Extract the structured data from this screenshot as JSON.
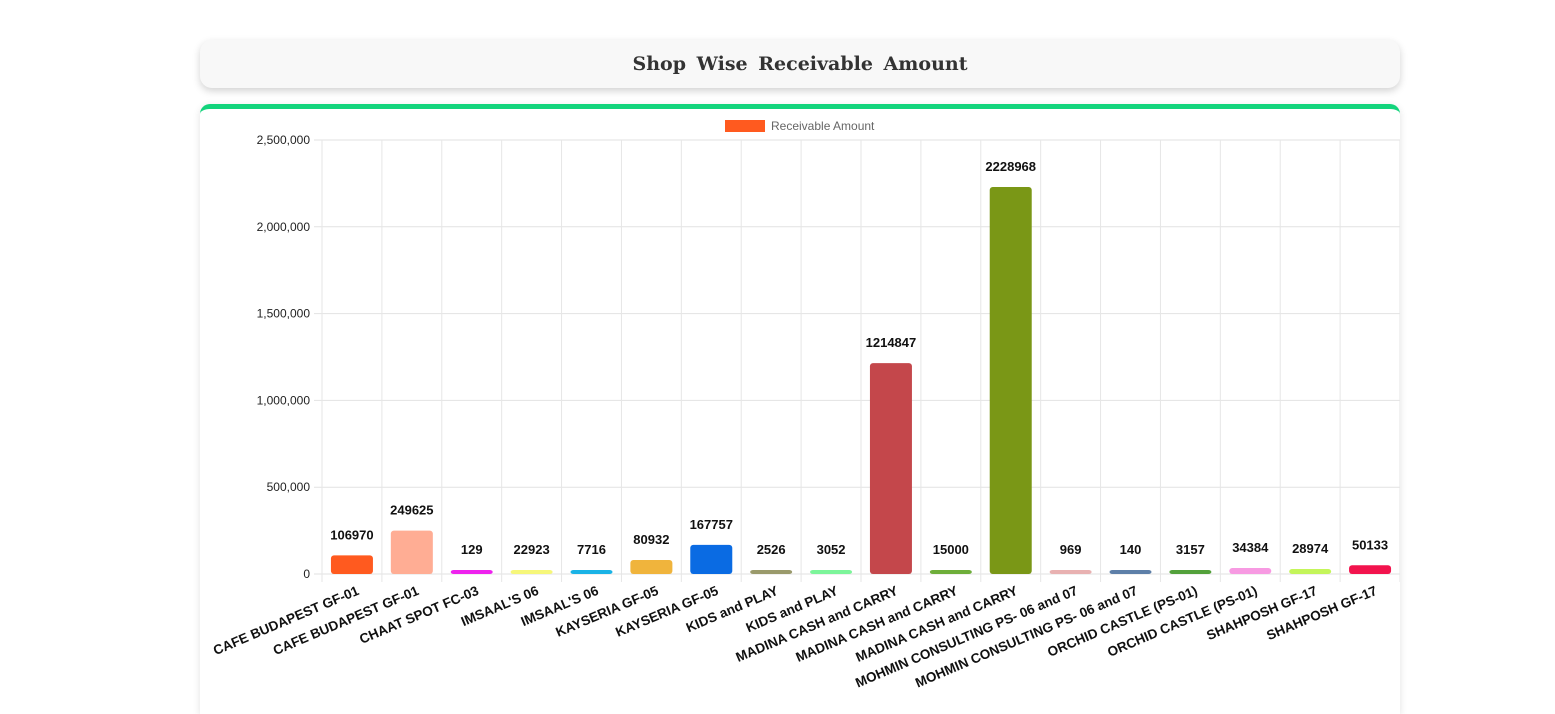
{
  "page": {
    "title": "Shop Wise Receivable Amount"
  },
  "chart_data": {
    "type": "bar",
    "title": "Shop Wise Receivable Amount",
    "xlabel": "",
    "ylabel": "",
    "ylim": [
      0,
      2500000
    ],
    "yticks": [
      0,
      500000,
      1000000,
      1500000,
      2000000,
      2500000
    ],
    "ytick_labels": [
      "0",
      "500,000",
      "1,000,000",
      "1,500,000",
      "2,000,000",
      "2,500,000"
    ],
    "grid": true,
    "legend_position": "top",
    "categories": [
      "CAFE BUDAPEST GF-01",
      "CAFE BUDAPEST GF-01",
      "CHAAT SPOT FC-03",
      "IMSAAL'S 06",
      "IMSAAL'S 06",
      "KAYSERIA GF-05",
      "KAYSERIA GF-05",
      "KIDS and PLAY",
      "KIDS and PLAY",
      "MADINA CASH and CARRY",
      "MADINA CASH and CARRY",
      "MADINA CASH and CARRY",
      "MOHMIN CONSULTING PS- 06 and 07",
      "MOHMIN CONSULTING PS- 06 and 07",
      "ORCHID CASTLE (PS-01)",
      "ORCHID CASTLE (PS-01)",
      "SHAHPOSH GF-17",
      "SHAHPOSH GF-17"
    ],
    "series": [
      {
        "name": "Receivable Amount",
        "legend_color": "#ff5a1f",
        "values": [
          106970,
          249625,
          129,
          22923,
          7716,
          80932,
          167757,
          2526,
          3052,
          1214847,
          15000,
          2228968,
          969,
          140,
          3157,
          34384,
          28974,
          50133
        ],
        "data_labels": [
          "106970",
          "249625",
          "129",
          "22923",
          "7716",
          "80932",
          "167757",
          "2526",
          "3052",
          "1214847",
          "15000",
          "2228968",
          "969",
          "140",
          "3157",
          "34384",
          "28974",
          "50133"
        ],
        "colors": [
          "#ff5a1f",
          "#ffad94",
          "#ee22ee",
          "#f6f77a",
          "#1ab3e6",
          "#f0b43c",
          "#0a6be3",
          "#9a9a6b",
          "#7cf59a",
          "#c4474b",
          "#6eae3a",
          "#7a9716",
          "#e8b1b1",
          "#5d7fa8",
          "#53a13b",
          "#f79ae2",
          "#c4f55a",
          "#f2134d"
        ]
      }
    ]
  }
}
